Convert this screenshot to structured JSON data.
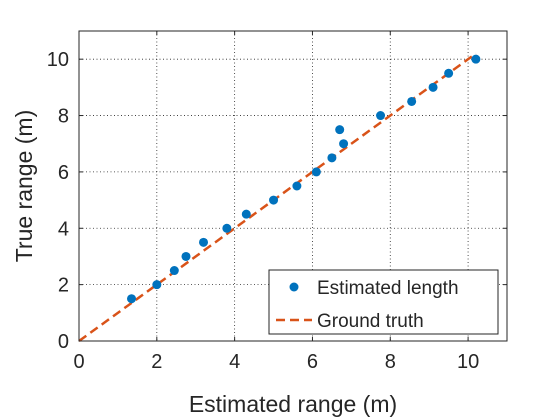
{
  "chart_data": {
    "type": "scatter",
    "xlabel": "Estimated range (m)",
    "ylabel": "True range (m)",
    "xlim": [
      0,
      11
    ],
    "ylim": [
      0,
      11
    ],
    "x_ticks": [
      0,
      2,
      4,
      6,
      8,
      10
    ],
    "y_ticks": [
      0,
      2,
      4,
      6,
      8,
      10
    ],
    "x_tick_labels": [
      "0",
      "2",
      "4",
      "6",
      "8",
      "10"
    ],
    "y_tick_labels": [
      "0",
      "2",
      "4",
      "6",
      "8",
      "10"
    ],
    "grid": true,
    "legend_position": "bottom-right",
    "series": [
      {
        "name": "Estimated length",
        "style": "markers",
        "color": "#0072BD",
        "x": [
          1.35,
          2.0,
          2.45,
          2.75,
          3.2,
          3.8,
          4.3,
          5.0,
          5.6,
          6.1,
          6.5,
          6.7,
          6.8,
          7.75,
          8.55,
          9.1,
          9.5,
          10.2
        ],
        "y": [
          1.5,
          2.0,
          2.5,
          3.0,
          3.5,
          4.0,
          4.5,
          5.0,
          5.5,
          6.0,
          6.5,
          7.5,
          7.0,
          8.0,
          8.5,
          9.0,
          9.5,
          10.0
        ]
      },
      {
        "name": "Ground truth",
        "style": "dashed-line",
        "color": "#D95319",
        "x": [
          0,
          10.2
        ],
        "y": [
          0,
          10.2
        ]
      }
    ]
  }
}
